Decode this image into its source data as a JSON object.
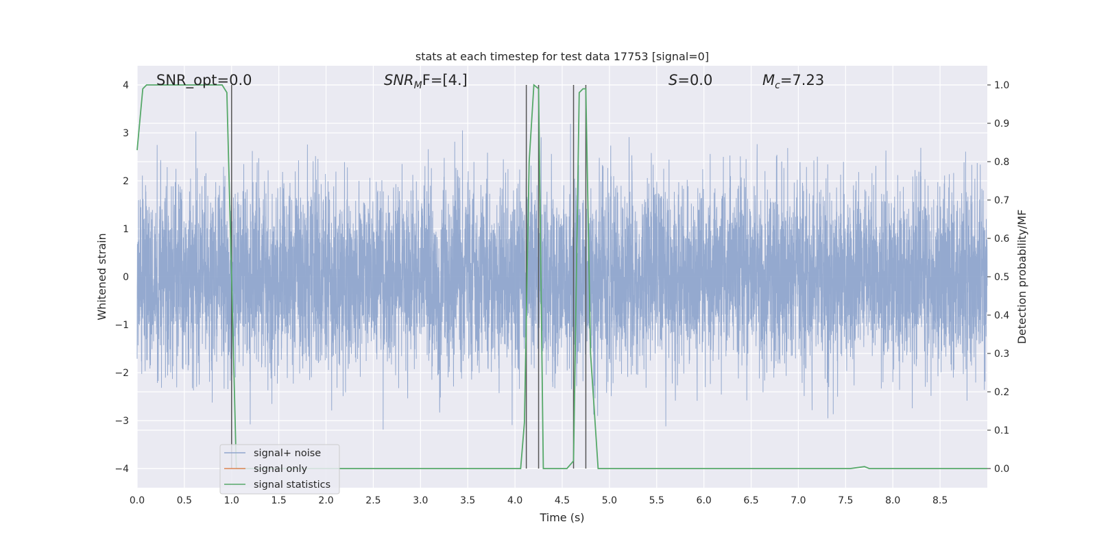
{
  "chart_data": {
    "type": "line",
    "title": "stats at each timestep for test data 17753 [signal=0]",
    "xlabel": "Time (s)",
    "ylabel": "Whitened strain",
    "y2label": "Detection probability/MF",
    "xlim": [
      0.0,
      9.0
    ],
    "ylim": [
      -4.4,
      4.4
    ],
    "y2lim": [
      -0.05,
      1.05
    ],
    "xticks": [
      "0.0",
      "0.5",
      "1.0",
      "1.5",
      "2.0",
      "2.5",
      "3.0",
      "3.5",
      "4.0",
      "4.5",
      "5.0",
      "5.5",
      "6.0",
      "6.5",
      "7.0",
      "7.5",
      "8.0",
      "8.5"
    ],
    "xtick_values": [
      0.0,
      0.5,
      1.0,
      1.5,
      2.0,
      2.5,
      3.0,
      3.5,
      4.0,
      4.5,
      5.0,
      5.5,
      6.0,
      6.5,
      7.0,
      7.5,
      8.0,
      8.5
    ],
    "yticks": [
      "−4",
      "−3",
      "−2",
      "−1",
      "0",
      "1",
      "2",
      "3",
      "4"
    ],
    "ytick_values": [
      -4,
      -3,
      -2,
      -1,
      0,
      1,
      2,
      3,
      4
    ],
    "y2ticks": [
      "0.0",
      "0.1",
      "0.2",
      "0.3",
      "0.4",
      "0.5",
      "0.6",
      "0.7",
      "0.8",
      "0.9",
      "1.0"
    ],
    "y2tick_values": [
      0.0,
      0.1,
      0.2,
      0.3,
      0.4,
      0.5,
      0.6,
      0.7,
      0.8,
      0.9,
      1.0
    ],
    "grid": true,
    "legend_position": "lower-left",
    "annotations": {
      "snr_opt": "SNR_opt=0.0",
      "snr_mf_main": "SNR",
      "snr_mf_sub": "M",
      "snr_mf_rest": "F=[4.]",
      "s_main": "S",
      "s_rest": "=0.0",
      "mc_main": "M",
      "mc_sub": "c",
      "mc_rest": "=7.23"
    },
    "series": [
      {
        "name": "signal+ noise",
        "color": "#8fa5cc",
        "description_values": "whitened strain noise, roughly within ±2 with peaks to ±4",
        "seed": 17753,
        "sample_rate": 1024,
        "n_samples": 9216,
        "amplitude_typical": 1.0
      },
      {
        "name": "signal only",
        "color": "#dd8452",
        "x": [],
        "y": []
      },
      {
        "name": "signal statistics",
        "color": "#55a868",
        "axis": "right",
        "x": [
          0.0,
          0.06,
          0.1,
          0.2,
          0.5,
          0.9,
          0.95,
          1.0,
          1.05,
          1.1,
          1.2,
          2.0,
          3.0,
          4.0,
          4.06,
          4.1,
          4.15,
          4.2,
          4.25,
          4.3,
          4.32,
          4.4,
          4.5,
          4.55,
          4.62,
          4.65,
          4.68,
          4.72,
          4.75,
          4.8,
          4.88,
          5.0,
          6.0,
          7.0,
          7.55,
          7.7,
          7.75,
          8.0,
          9.0
        ],
        "y": [
          0.83,
          0.99,
          1.0,
          1.0,
          1.0,
          1.0,
          0.98,
          0.5,
          0.0,
          0.0,
          0.0,
          0.0,
          0.0,
          0.0,
          0.0,
          0.12,
          0.8,
          1.0,
          0.99,
          0.0,
          0.0,
          0.0,
          0.0,
          0.0,
          0.02,
          0.5,
          0.98,
          0.99,
          0.99,
          0.3,
          0.0,
          0.0,
          0.0,
          0.0,
          0.0,
          0.005,
          0.0,
          0.0,
          0.0
        ]
      }
    ],
    "vertical_lines": {
      "color": "#555555",
      "x": [
        1.0,
        4.12,
        4.25,
        4.62,
        4.75
      ]
    }
  }
}
